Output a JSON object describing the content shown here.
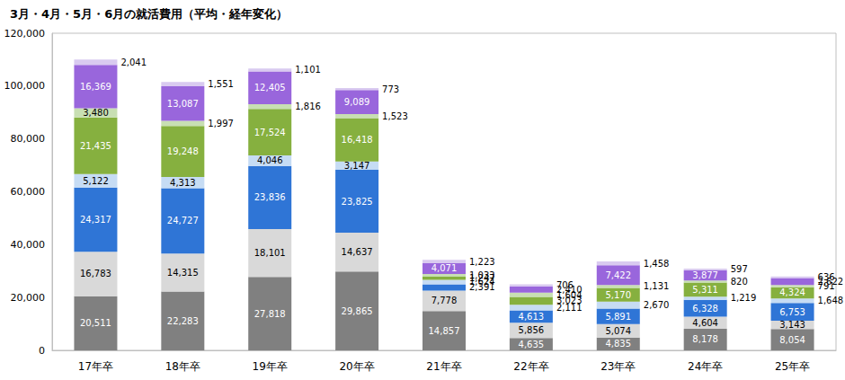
{
  "chart_data": {
    "type": "bar",
    "title": "3月・4月・5月・6月の就活費用（平均・経年変化）",
    "categories": [
      "17年卒",
      "18年卒",
      "19年卒",
      "20年卒",
      "21年卒",
      "22年卒",
      "23年卒",
      "24年卒",
      "25年卒"
    ],
    "stacked": true,
    "data_labels": true,
    "grid": false,
    "ylim": [
      0,
      120000
    ],
    "yticks": [
      {
        "value": 0,
        "label": "0"
      },
      {
        "value": 20000,
        "label": "20,000"
      },
      {
        "value": 40000,
        "label": "40,000"
      },
      {
        "value": 60000,
        "label": "60,000"
      },
      {
        "value": 80000,
        "label": "80,000"
      },
      {
        "value": 100000,
        "label": "100,000"
      },
      {
        "value": 120000,
        "label": "120,000"
      }
    ],
    "series": [
      {
        "color": "#808080",
        "values": [
          20511,
          22283,
          27818,
          29865,
          14857,
          4635,
          4835,
          8178,
          8054
        ],
        "value_labels": [
          "20,511",
          "22,283",
          "27,818",
          "29,865",
          "14,857",
          "4,635",
          "4,835",
          "8,178",
          "8,054"
        ]
      },
      {
        "color": "#d9d9d9",
        "values": [
          16783,
          14315,
          18101,
          14637,
          7778,
          5856,
          5074,
          4604,
          3143
        ],
        "value_labels": [
          "16,783",
          "14,315",
          "18,101",
          "14,637",
          "7,778",
          "5,856",
          "5,074",
          "4,604",
          "3,143"
        ]
      },
      {
        "color": "#2f75d6",
        "values": [
          24317,
          24727,
          23836,
          23825,
          2391,
          4613,
          5891,
          6328,
          6753
        ],
        "value_labels": [
          "24,317",
          "24,727",
          "23,836",
          "23,825",
          "2,391",
          "4,613",
          "5,891",
          "6,328",
          "6,753"
        ]
      },
      {
        "color": "#c6dcf4",
        "values": [
          5122,
          4313,
          4046,
          3147,
          1624,
          2111,
          2670,
          1219,
          1648
        ],
        "value_labels": [
          "5,122",
          "4,313",
          "4,046",
          "3,147",
          "1,624",
          "2,111",
          "2,670",
          "1,219",
          "1,648"
        ]
      },
      {
        "color": "#86b03f",
        "values": [
          21435,
          19248,
          17524,
          16418,
          1247,
          3023,
          5170,
          5311,
          4324
        ],
        "value_labels": [
          "21,435",
          "19,248",
          "17,524",
          "16,418",
          "1,247",
          "3,023",
          "5,170",
          "5,311",
          "4,324"
        ]
      },
      {
        "color": "#c8dfb3",
        "values": [
          3480,
          1997,
          1816,
          1523,
          1033,
          1604,
          1131,
          820,
          791
        ],
        "value_labels": [
          "3,480",
          "1,997",
          "1,816",
          "1,523",
          "1,033",
          "1,604",
          "1,131",
          "820",
          "791"
        ]
      },
      {
        "color": "#9966dc",
        "values": [
          16369,
          13087,
          12405,
          9089,
          4071,
          2410,
          7422,
          3877,
          2622
        ],
        "value_labels": [
          "16,369",
          "13,087",
          "12,405",
          "9,089",
          "4,071",
          "2,410",
          "7,422",
          "3,877",
          "2,622"
        ]
      },
      {
        "color": "#d9caf0",
        "values": [
          2041,
          1551,
          1101,
          773,
          1223,
          706,
          1458,
          597,
          636
        ],
        "value_labels": [
          "2,041",
          "1,551",
          "1,101",
          "773",
          "1,223",
          "706",
          "1,458",
          "597",
          "636"
        ]
      }
    ],
    "totals": {
      "values": [
        110058,
        101521,
        106647,
        99277,
        34224,
        24958,
        33651,
        30934,
        27971
      ],
      "value_labels": [
        "110,058",
        "101,521",
        "106,647",
        "99,277",
        "34,224",
        "24,958",
        "33,651",
        "30,934",
        "27,971"
      ]
    }
  }
}
